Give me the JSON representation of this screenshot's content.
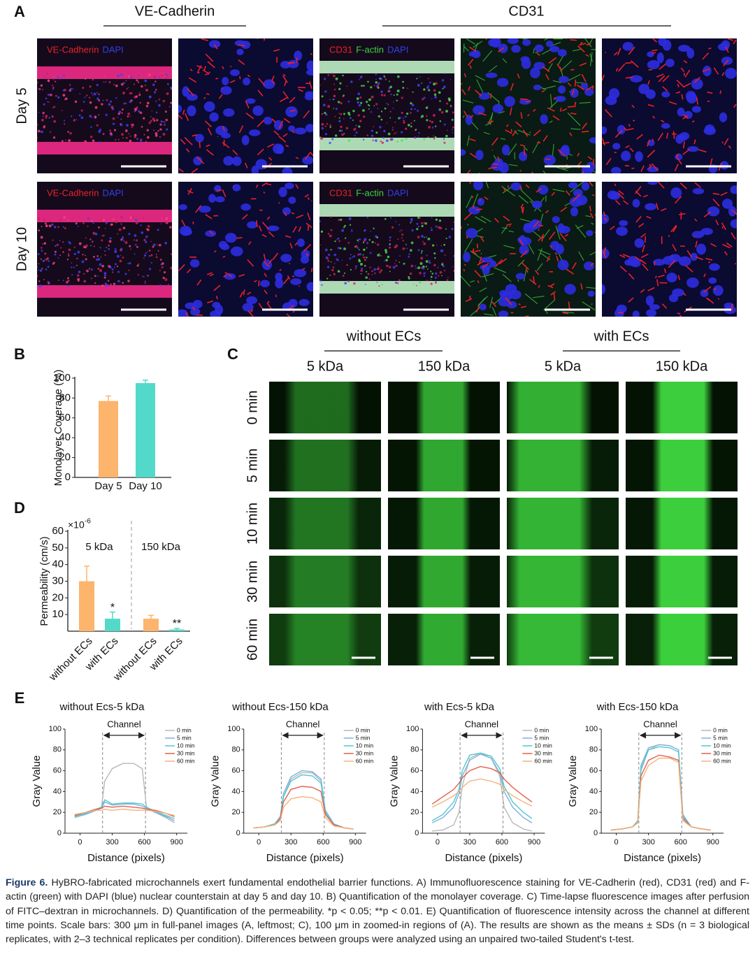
{
  "panel_labels": [
    "A",
    "B",
    "C",
    "D",
    "E"
  ],
  "panel_a": {
    "columns": [
      "VE-Cadherin",
      "CD31"
    ],
    "rows": [
      "Day 5",
      "Day 10"
    ],
    "stains": [
      [
        {
          "text": "VE-Cadherin",
          "color": "#e8232a"
        },
        {
          "text": "DAPI",
          "color": "#3340e8"
        }
      ],
      [
        {
          "text": "CD31",
          "color": "#e8232a"
        },
        {
          "text": "F-actin",
          "color": "#3fd23f"
        },
        {
          "text": "DAPI",
          "color": "#3340e8"
        }
      ]
    ]
  },
  "panel_c": {
    "groups": [
      "without ECs",
      "with ECs"
    ],
    "columns": [
      "5 kDa",
      "150 kDa",
      "5 kDa",
      "150 kDa"
    ],
    "rows": [
      "0 min",
      "5 min",
      "10 min",
      "30 min",
      "60 min"
    ]
  },
  "chart_data": [
    {
      "type": "bar",
      "ylabel": "Monolayer Coverage (%)",
      "categories": [
        "Day 5",
        "Day 10"
      ],
      "values": [
        77,
        95
      ],
      "errors": [
        5,
        3
      ],
      "colors": [
        "#fdb46c",
        "#52d9c9"
      ],
      "ylim": [
        0,
        100
      ],
      "yticks": [
        0,
        20,
        40,
        60,
        80,
        100
      ]
    },
    {
      "type": "bar",
      "ylabel": "Permeability (cm/s)",
      "multiplier": "×10",
      "exponent": "-6",
      "groups": [
        "5 kDa",
        "150 kDa"
      ],
      "categories": [
        "without ECs",
        "with ECs",
        "without ECs",
        "with ECs"
      ],
      "values": [
        30,
        7.5,
        7.5,
        1
      ],
      "errors": [
        9,
        4,
        2,
        0.7
      ],
      "annotations": [
        null,
        "*",
        null,
        "**"
      ],
      "colors": [
        "#fdb46c",
        "#52d9c9",
        "#fdb46c",
        "#52d9c9"
      ],
      "ylim": [
        0,
        60
      ],
      "yticks": [
        10,
        20,
        30,
        40,
        50,
        60
      ]
    },
    {
      "type": "line",
      "title": "without Ecs-5 kDa",
      "annotation": "Channel",
      "channel": [
        210,
        610
      ],
      "xlabel": "Distance (pixels)",
      "ylabel": "Gray Value",
      "xlim": [
        -140,
        1000
      ],
      "ylim": [
        0,
        100
      ],
      "xticks": [
        0,
        300,
        600,
        900
      ],
      "yticks": [
        0,
        20,
        40,
        60,
        80,
        100
      ],
      "x": [
        -50,
        50,
        150,
        200,
        230,
        300,
        400,
        500,
        580,
        620,
        700,
        800,
        880
      ],
      "series": [
        {
          "name": "0 min",
          "color": "#b8b8b8",
          "values": [
            15,
            18,
            22,
            25,
            50,
            62,
            67,
            67,
            62,
            24,
            20,
            15,
            10
          ]
        },
        {
          "name": "5 min",
          "color": "#7fb0e0",
          "values": [
            16,
            18,
            22,
            24,
            30,
            27,
            28,
            28,
            26,
            24,
            20,
            16,
            12
          ]
        },
        {
          "name": "10 min",
          "color": "#4fc8d2",
          "values": [
            16,
            19,
            23,
            25,
            32,
            28,
            29,
            29,
            28,
            25,
            21,
            17,
            14
          ]
        },
        {
          "name": "30 min",
          "color": "#e0604a",
          "values": [
            17,
            20,
            23,
            24,
            26,
            25,
            26,
            25,
            24,
            23,
            22,
            19,
            16
          ]
        },
        {
          "name": "60 min",
          "color": "#f5b27a",
          "values": [
            18,
            20,
            22,
            22,
            23,
            22,
            23,
            22,
            22,
            22,
            21,
            19,
            17
          ]
        }
      ]
    },
    {
      "type": "line",
      "title": "without Ecs-150 kDa",
      "annotation": "Channel",
      "channel": [
        210,
        610
      ],
      "xlabel": "Distance (pixels)",
      "ylabel": "Gray Value",
      "xlim": [
        -140,
        1000
      ],
      "ylim": [
        0,
        100
      ],
      "xticks": [
        0,
        300,
        600,
        900
      ],
      "yticks": [
        0,
        20,
        40,
        60,
        80,
        100
      ],
      "x": [
        -50,
        50,
        150,
        200,
        230,
        300,
        400,
        500,
        580,
        620,
        700,
        800,
        880
      ],
      "series": [
        {
          "name": "0 min",
          "color": "#b8b8b8",
          "values": [
            5,
            6,
            8,
            15,
            35,
            52,
            58,
            58,
            50,
            20,
            8,
            5,
            4
          ]
        },
        {
          "name": "5 min",
          "color": "#7fb0e0",
          "values": [
            5,
            6,
            9,
            16,
            38,
            54,
            60,
            59,
            52,
            22,
            9,
            5,
            4
          ]
        },
        {
          "name": "10 min",
          "color": "#4fc8d2",
          "values": [
            5,
            6,
            9,
            15,
            35,
            50,
            56,
            55,
            48,
            20,
            8,
            5,
            4
          ]
        },
        {
          "name": "30 min",
          "color": "#e0604a",
          "values": [
            5,
            6,
            8,
            14,
            30,
            42,
            45,
            44,
            40,
            18,
            8,
            5,
            4
          ]
        },
        {
          "name": "60 min",
          "color": "#f5b27a",
          "values": [
            5,
            6,
            8,
            12,
            25,
            33,
            35,
            34,
            30,
            15,
            7,
            5,
            4
          ]
        }
      ]
    },
    {
      "type": "line",
      "title": "with Ecs-5 kDa",
      "annotation": "Channel",
      "channel": [
        210,
        610
      ],
      "xlabel": "Distance (pixels)",
      "ylabel": "Gray Value",
      "xlim": [
        -140,
        1000
      ],
      "ylim": [
        0,
        100
      ],
      "xticks": [
        0,
        300,
        600,
        900
      ],
      "yticks": [
        0,
        20,
        40,
        60,
        80,
        100
      ],
      "x": [
        -50,
        50,
        150,
        200,
        230,
        300,
        400,
        500,
        580,
        620,
        700,
        800,
        880
      ],
      "series": [
        {
          "name": "0 min",
          "color": "#b8b8b8",
          "values": [
            2,
            3,
            8,
            20,
            45,
            72,
            77,
            72,
            55,
            25,
            10,
            4,
            2
          ]
        },
        {
          "name": "5 min",
          "color": "#7fb0e0",
          "values": [
            10,
            15,
            25,
            38,
            55,
            70,
            76,
            72,
            58,
            40,
            25,
            15,
            10
          ]
        },
        {
          "name": "10 min",
          "color": "#4fc8d2",
          "values": [
            12,
            18,
            30,
            42,
            60,
            75,
            77,
            74,
            62,
            45,
            30,
            20,
            14
          ]
        },
        {
          "name": "30 min",
          "color": "#e0604a",
          "values": [
            28,
            35,
            42,
            48,
            53,
            60,
            64,
            62,
            58,
            52,
            44,
            36,
            30
          ]
        },
        {
          "name": "60 min",
          "color": "#f5b27a",
          "values": [
            25,
            30,
            36,
            40,
            44,
            50,
            52,
            50,
            47,
            42,
            36,
            30,
            26
          ]
        }
      ]
    },
    {
      "type": "line",
      "title": "with Ecs-150 kDa",
      "annotation": "Channel",
      "channel": [
        210,
        610
      ],
      "xlabel": "Distance (pixels)",
      "ylabel": "Gray Value",
      "xlim": [
        -140,
        1000
      ],
      "ylim": [
        0,
        100
      ],
      "xticks": [
        0,
        300,
        600,
        900
      ],
      "yticks": [
        0,
        20,
        40,
        60,
        80,
        100
      ],
      "x": [
        -50,
        50,
        150,
        200,
        230,
        300,
        400,
        500,
        580,
        620,
        700,
        800,
        880
      ],
      "series": [
        {
          "name": "0 min",
          "color": "#b8b8b8",
          "values": [
            3,
            4,
            6,
            10,
            60,
            80,
            85,
            84,
            80,
            15,
            6,
            4,
            3
          ]
        },
        {
          "name": "5 min",
          "color": "#7fb0e0",
          "values": [
            3,
            4,
            6,
            12,
            65,
            82,
            85,
            84,
            80,
            18,
            6,
            4,
            3
          ]
        },
        {
          "name": "10 min",
          "color": "#4fc8d2",
          "values": [
            3,
            4,
            6,
            11,
            62,
            80,
            83,
            82,
            78,
            16,
            6,
            4,
            3
          ]
        },
        {
          "name": "30 min",
          "color": "#e0604a",
          "values": [
            3,
            4,
            6,
            10,
            55,
            70,
            75,
            73,
            70,
            14,
            6,
            4,
            3
          ]
        },
        {
          "name": "60 min",
          "color": "#f5b27a",
          "values": [
            3,
            4,
            6,
            10,
            50,
            65,
            72,
            72,
            68,
            12,
            6,
            4,
            3
          ]
        }
      ]
    }
  ],
  "caption": {
    "label": "Figure 6.",
    "text": " HyBRO-fabricated microchannels exert fundamental endothelial barrier functions. A) Immunofluorescence staining for VE-Cadherin (red), CD31 (red) and F-actin (green) with DAPI (blue) nuclear counterstain at day 5 and day 10. B) Quantification of the monolayer coverage. C) Time-lapse fluorescence images after perfusion of FITC–dextran in microchannels. D) Quantification of the permeability. *p < 0.05; **p < 0.01. E) Quantification of fluorescence intensity across the channel at different time points. Scale bars: 300 μm in full-panel images (A, leftmost; C), 100 μm in zoomed-in regions of (A). The results are shown as the means ± SDs (n = 3 biological replicates, with 2–3 technical replicates per condition). Differences between groups were analyzed using an unpaired two-tailed Student's t-test."
  }
}
